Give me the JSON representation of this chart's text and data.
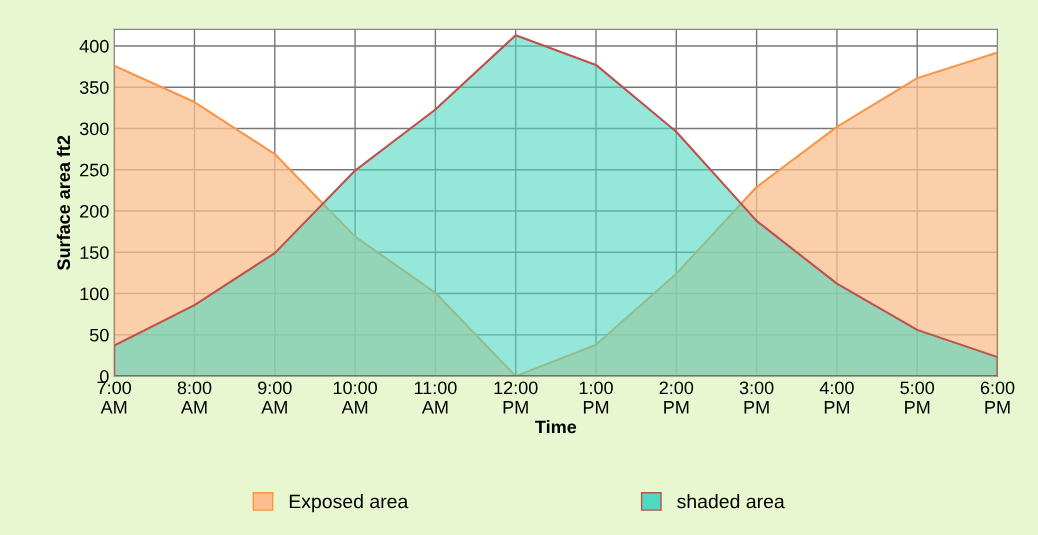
{
  "chart_data": {
    "type": "area",
    "xlabel": "Time",
    "ylabel": "Surface area ft2",
    "categories": [
      "7:00\nAM",
      "8:00\nAM",
      "9:00\nAM",
      "10:00\nAM",
      "11:00\nAM",
      "12:00\nPM",
      "1:00\nPM",
      "2:00\nPM",
      "3:00\nPM",
      "4:00\nPM",
      "5:00\nPM",
      "6:00\nPM"
    ],
    "series": [
      {
        "name": "Exposed area",
        "color": "#f79646",
        "values": [
          376,
          332,
          269,
          169,
          101,
          0,
          38,
          124,
          229,
          302,
          361,
          392
        ]
      },
      {
        "name": "shaded area",
        "color": "#c0504d",
        "values": [
          37,
          86,
          149,
          249,
          323,
          413,
          377,
          296,
          188,
          112,
          56,
          23
        ]
      }
    ],
    "ylim": [
      0,
      420
    ],
    "yticks": [
      0,
      50,
      100,
      150,
      200,
      250,
      300,
      350,
      400
    ],
    "grid": true,
    "legend": "bottom"
  }
}
